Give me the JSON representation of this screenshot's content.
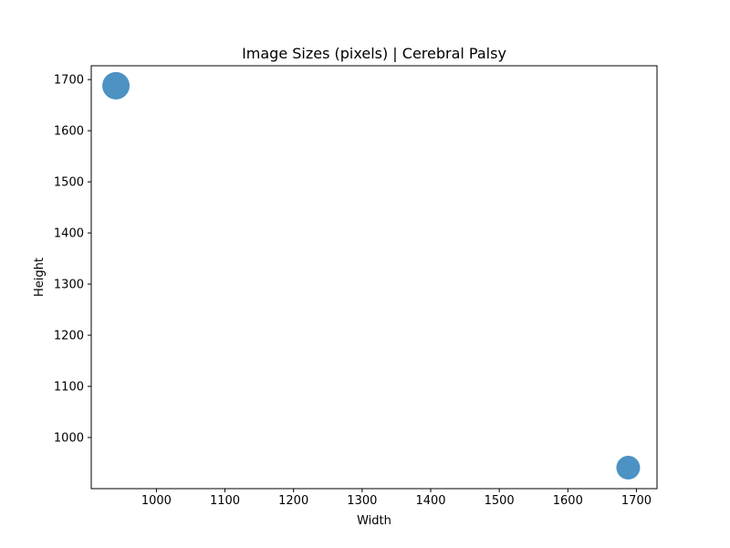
{
  "chart_data": {
    "type": "scatter",
    "title": "Image Sizes (pixels) | Cerebral Palsy",
    "xlabel": "Width",
    "ylabel": "Height",
    "xlim": [
      905,
      1730
    ],
    "ylim": [
      900,
      1727
    ],
    "x_ticks": [
      1000,
      1100,
      1200,
      1300,
      1400,
      1500,
      1600,
      1700
    ],
    "y_ticks": [
      1000,
      1100,
      1200,
      1300,
      1400,
      1500,
      1600,
      1700
    ],
    "grid": false,
    "legend": "none",
    "marker_color": "#1f77b4",
    "marker_alpha": 0.8,
    "points": [
      {
        "x": 941,
        "y": 1688,
        "count": 4
      },
      {
        "x": 1688,
        "y": 941,
        "count": 3
      }
    ]
  }
}
